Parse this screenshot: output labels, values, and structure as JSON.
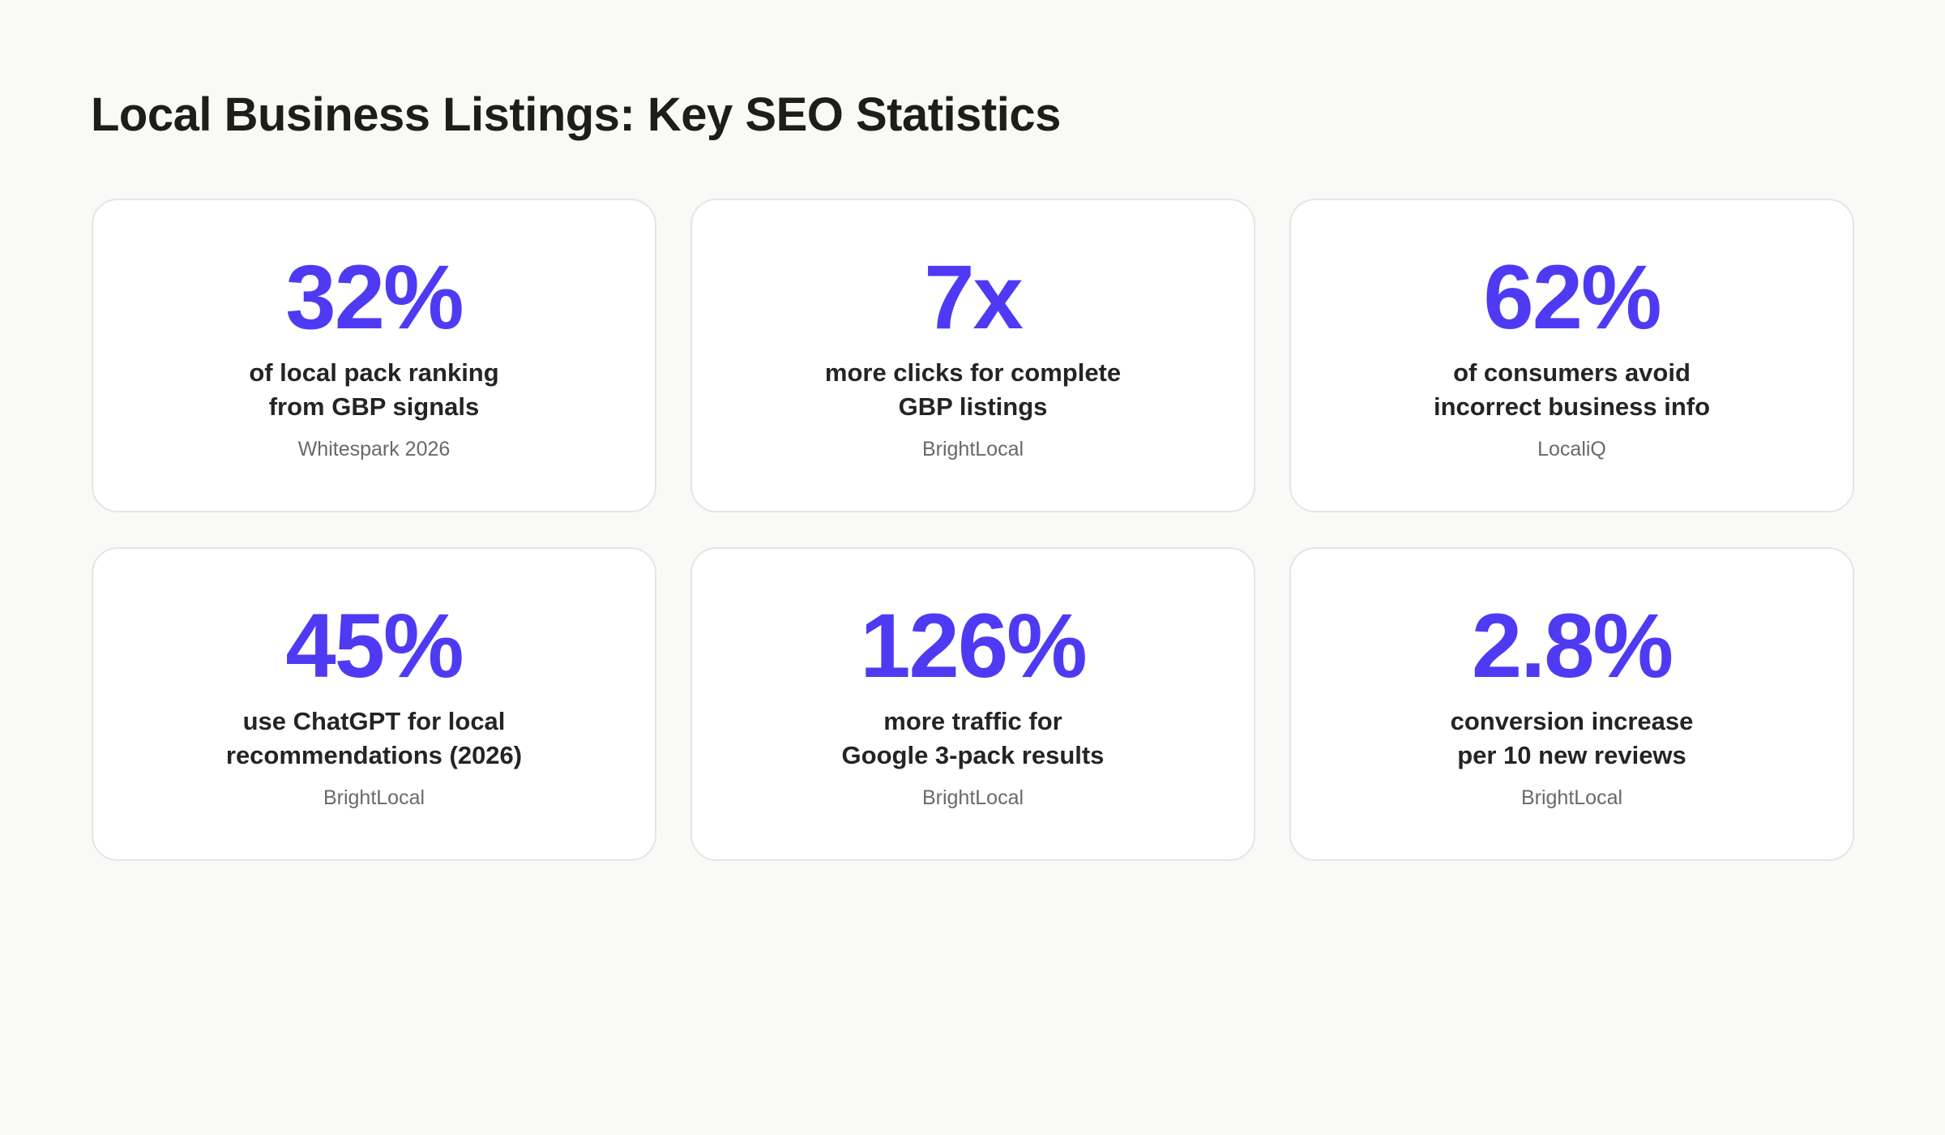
{
  "title": "Local Business Listings: Key SEO Statistics",
  "colors": {
    "accent": "#4f3af4",
    "text": "#262422",
    "muted": "#6d6864",
    "background": "#f9f9f8"
  },
  "cards": [
    {
      "value": "32%",
      "line1": "of local pack ranking",
      "line2": "from GBP signals",
      "source": "Whitespark 2026"
    },
    {
      "value": "7x",
      "line1": "more clicks for complete",
      "line2": "GBP listings",
      "source": "BrightLocal"
    },
    {
      "value": "62%",
      "line1": "of consumers avoid",
      "line2": "incorrect business info",
      "source": "LocaliQ"
    },
    {
      "value": "45%",
      "line1": "use ChatGPT for local",
      "line2": "recommendations (2026)",
      "source": "BrightLocal"
    },
    {
      "value": "126%",
      "line1": "more traffic for",
      "line2": "Google 3-pack results",
      "source": "BrightLocal"
    },
    {
      "value": "2.8%",
      "line1": "conversion increase",
      "line2": "per 10 new reviews",
      "source": "BrightLocal"
    }
  ]
}
